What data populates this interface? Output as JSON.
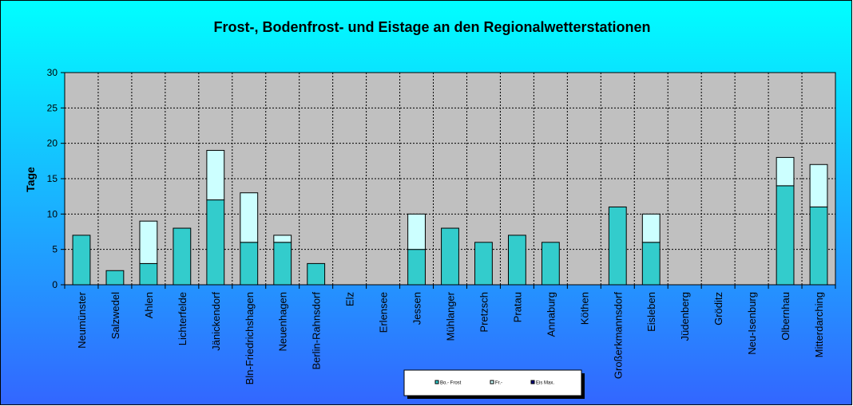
{
  "chart_data": {
    "type": "bar",
    "stacked": true,
    "title": "Frost-, Bodenfrost- und Eistage an den Regionalwetterstationen",
    "xlabel": "",
    "ylabel": "Tage",
    "ylim": [
      0,
      30
    ],
    "yticks": [
      0,
      5,
      10,
      15,
      20,
      25,
      30
    ],
    "grid": true,
    "legend_position": "bottom-center",
    "categories": [
      "Neumünster",
      "Salzwedel",
      "Ahlen",
      "Lichterfelde",
      "Jänickendorf",
      "Bln-Friedrichshagen",
      "Neuenhagen",
      "Berlin-Rahnsdorf",
      "Elz",
      "Erlensee",
      "Jessen",
      "Mühlanger",
      "Pretzsch",
      "Pratau",
      "Annaburg",
      "Köthen",
      "Großerkmannsdorf",
      "Eisleben",
      "Jüdenberg",
      "Gröditz",
      "Neu-Isenburg",
      "Olbernhau",
      "Mitterdarching"
    ],
    "series": [
      {
        "name": "Bo.- Frost",
        "color": "#33CCCC",
        "values": [
          7,
          2,
          3,
          8,
          12,
          6,
          6,
          3,
          0,
          0,
          5,
          8,
          6,
          7,
          6,
          0,
          11,
          6,
          0,
          0,
          0,
          14,
          11
        ]
      },
      {
        "name": "Fr.-",
        "color": "#CCFFFF",
        "values": [
          0,
          0,
          6,
          0,
          7,
          7,
          1,
          0,
          0,
          0,
          5,
          0,
          0,
          0,
          0,
          0,
          0,
          4,
          0,
          0,
          0,
          4,
          6
        ]
      },
      {
        "name": "Eis Max.",
        "color": "#000080",
        "values": [
          0,
          0,
          0,
          0,
          0,
          0,
          0,
          0,
          0,
          0,
          0,
          0,
          0,
          0,
          0,
          0,
          0,
          0,
          0,
          0,
          0,
          0,
          0
        ]
      }
    ],
    "colors": {
      "background_top": "#00FFFF",
      "background_bottom": "#3366FF",
      "plot_area": "#C0C0C0"
    }
  }
}
